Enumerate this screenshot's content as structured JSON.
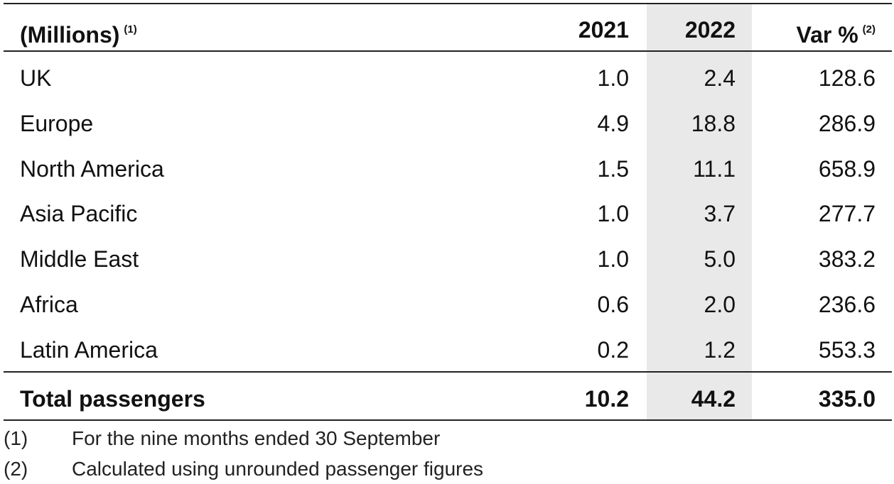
{
  "table": {
    "header": {
      "label": "(Millions)",
      "label_note": "(1)",
      "columns": [
        "2021",
        "2022",
        "Var %"
      ],
      "var_note": "(2)"
    },
    "rows": [
      [
        "UK",
        "1.0",
        "2.4",
        "128.6"
      ],
      [
        "Europe",
        "4.9",
        "18.8",
        "286.9"
      ],
      [
        "North America",
        "1.5",
        "11.1",
        "658.9"
      ],
      [
        "Asia Pacific",
        "1.0",
        "3.7",
        "277.7"
      ],
      [
        "Middle East",
        "1.0",
        "5.0",
        "383.2"
      ],
      [
        "Africa",
        "0.6",
        "2.0",
        "236.6"
      ],
      [
        "Latin America",
        "0.2",
        "1.2",
        "553.3"
      ]
    ],
    "total": [
      "Total passengers",
      "10.2",
      "44.2",
      "335.0"
    ]
  },
  "footnotes": [
    {
      "marker": "(1)",
      "text": "For the nine months ended 30 September"
    },
    {
      "marker": "(2)",
      "text": "Calculated using unrounded passenger figures"
    }
  ]
}
